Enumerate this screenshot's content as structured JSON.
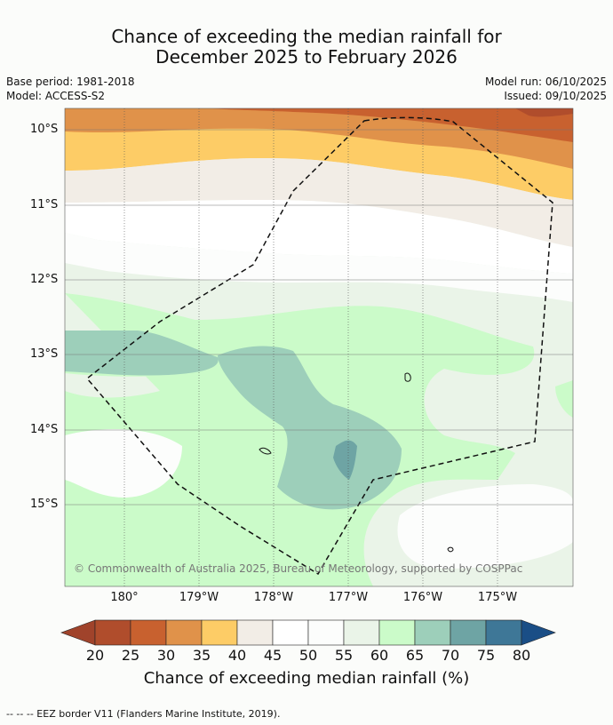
{
  "title": {
    "line1": "Chance of exceeding the median rainfall for",
    "line2": "December 2025 to February 2026"
  },
  "meta": {
    "base_period": "Base period: 1981-2018",
    "model": "Model: ACCESS-S2",
    "model_run": "Model run: 06/10/2025",
    "issued": "Issued: 09/10/2025"
  },
  "axes": {
    "lat_labels": [
      "10°S",
      "11°S",
      "12°S",
      "13°S",
      "14°S",
      "15°S"
    ],
    "lon_labels": [
      "180°",
      "179°W",
      "178°W",
      "177°W",
      "176°W",
      "175°W"
    ]
  },
  "attribution": "© Commonwealth of Australia 2025, Bureau of Meteorology, supported by COSPPac",
  "colorbar": {
    "title": "Chance of exceeding median rainfall (%)",
    "ticks": [
      "20",
      "25",
      "30",
      "35",
      "40",
      "45",
      "50",
      "55",
      "60",
      "65",
      "70",
      "75",
      "80"
    ],
    "colors": [
      "#a0432b",
      "#b04d2c",
      "#c8612f",
      "#e0924a",
      "#fdcc66",
      "#f2ede6",
      "#ffffff",
      "#fcfdfc",
      "#eaf4e8",
      "#cbfbc9",
      "#9dcfba",
      "#6ea4a4",
      "#3e7797",
      "#1a4e86"
    ]
  },
  "footnote": "-- -- -- EEZ border V11 (Flanders Marine Institute, 2019)."
}
